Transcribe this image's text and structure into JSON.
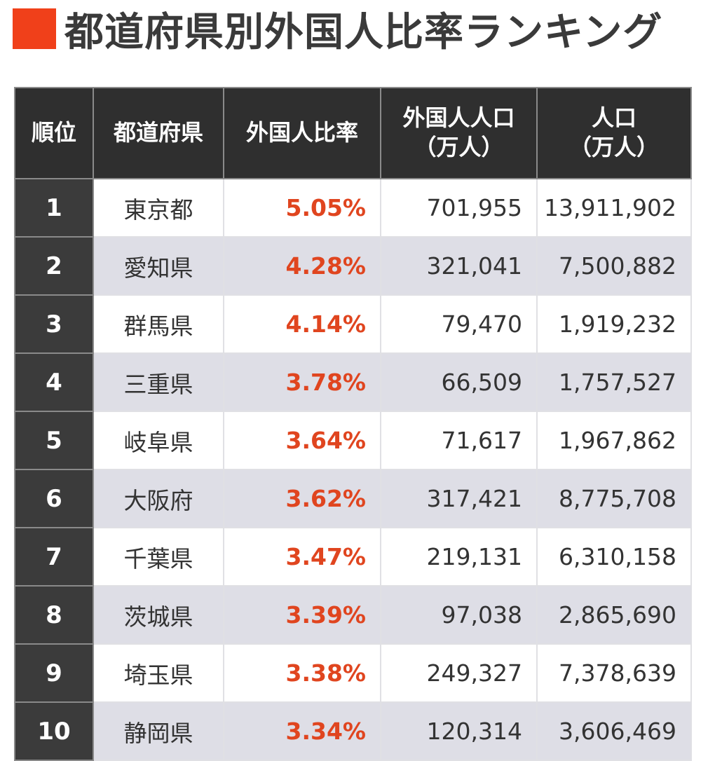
{
  "title": "都道府県別外国人比率ランキング",
  "colors": {
    "accent": "#f0401a",
    "header_bg": "#2f2f2f",
    "ratio_text": "#e0451f",
    "stripe": "#dedee6"
  },
  "table": {
    "headers": [
      "順位",
      "都道府県",
      "外国人比率",
      "外国人人口\n（万人）",
      "人口\n（万人）"
    ],
    "rows": [
      {
        "rank": "1",
        "prefecture": "東京都",
        "ratio": "5.05%",
        "foreign_pop": "701,955",
        "population": "13,911,902"
      },
      {
        "rank": "2",
        "prefecture": "愛知県",
        "ratio": "4.28%",
        "foreign_pop": "321,041",
        "population": "7,500,882"
      },
      {
        "rank": "3",
        "prefecture": "群馬県",
        "ratio": "4.14%",
        "foreign_pop": "79,470",
        "population": "1,919,232"
      },
      {
        "rank": "4",
        "prefecture": "三重県",
        "ratio": "3.78%",
        "foreign_pop": "66,509",
        "population": "1,757,527"
      },
      {
        "rank": "5",
        "prefecture": "岐阜県",
        "ratio": "3.64%",
        "foreign_pop": "71,617",
        "population": "1,967,862"
      },
      {
        "rank": "6",
        "prefecture": "大阪府",
        "ratio": "3.62%",
        "foreign_pop": "317,421",
        "population": "8,775,708"
      },
      {
        "rank": "7",
        "prefecture": "千葉県",
        "ratio": "3.47%",
        "foreign_pop": "219,131",
        "population": "6,310,158"
      },
      {
        "rank": "8",
        "prefecture": "茨城県",
        "ratio": "3.39%",
        "foreign_pop": "97,038",
        "population": "2,865,690"
      },
      {
        "rank": "9",
        "prefecture": "埼玉県",
        "ratio": "3.38%",
        "foreign_pop": "249,327",
        "population": "7,378,639"
      },
      {
        "rank": "10",
        "prefecture": "静岡県",
        "ratio": "3.34%",
        "foreign_pop": "120,314",
        "population": "3,606,469"
      }
    ]
  }
}
